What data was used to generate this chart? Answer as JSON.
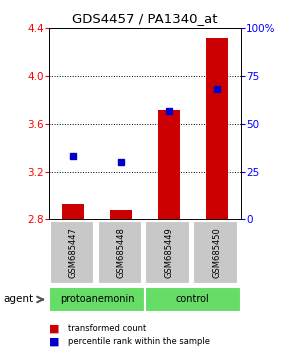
{
  "title": "GDS4457 / PA1340_at",
  "samples": [
    "GSM685447",
    "GSM685448",
    "GSM685449",
    "GSM685450"
  ],
  "red_values": [
    2.93,
    2.88,
    3.72,
    4.32
  ],
  "blue_values": [
    33,
    30,
    57,
    68
  ],
  "ylim_left": [
    2.8,
    4.4
  ],
  "ylim_right": [
    0,
    100
  ],
  "yticks_left": [
    2.8,
    3.2,
    3.6,
    4.0,
    4.4
  ],
  "yticks_right": [
    0,
    25,
    50,
    75,
    100
  ],
  "bar_color": "#cc0000",
  "dot_color": "#0000cc",
  "plot_bg": "#ffffff",
  "sample_box_color": "#c8c8c8",
  "group_box_color": "#66dd66",
  "legend_red": "transformed count",
  "legend_blue": "percentile rank within the sample",
  "groups": [
    {
      "label": "protoanemonin",
      "start": 0,
      "end": 1
    },
    {
      "label": "control",
      "start": 2,
      "end": 3
    }
  ]
}
